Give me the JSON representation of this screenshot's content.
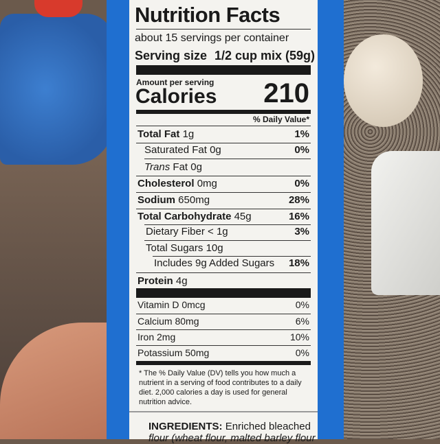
{
  "label": {
    "title": "Nutrition Facts",
    "servings": "about 15 servings per container",
    "serving_size_label": "Serving size",
    "serving_size_value": "1/2 cup mix (59g)",
    "amount_per_serving": "Amount per serving",
    "calories_label": "Calories",
    "calories_value": "210",
    "dv_header": "% Daily Value*",
    "nutrients": [
      {
        "name": "Total Fat",
        "amount": "1g",
        "dv": "1%"
      },
      {
        "name": "Saturated Fat",
        "amount": "0g",
        "dv": "0%"
      },
      {
        "name": "Trans",
        "name2": "Fat",
        "amount": "0g"
      },
      {
        "name": "Cholesterol",
        "amount": "0mg",
        "dv": "0%"
      },
      {
        "name": "Sodium",
        "amount": "650mg",
        "dv": "28%"
      },
      {
        "name": "Total Carbohydrate",
        "amount": "45g",
        "dv": "16%"
      },
      {
        "name": "Dietary Fiber",
        "amount": "< 1g",
        "dv": "3%"
      },
      {
        "name": "Total Sugars",
        "amount": "10g"
      },
      {
        "name": "Includes 9g Added Sugars",
        "dv": "18%"
      },
      {
        "name": "Protein",
        "amount": "4g"
      }
    ],
    "vitamins": [
      {
        "name": "Vitamin D",
        "amount": "0mcg",
        "dv": "0%"
      },
      {
        "name": "Calcium",
        "amount": "80mg",
        "dv": "6%"
      },
      {
        "name": "Iron",
        "amount": "2mg",
        "dv": "10%"
      },
      {
        "name": "Potassium",
        "amount": "50mg",
        "dv": "0%"
      }
    ],
    "footnote": "* The % Daily Value (DV) tells you how much a nutrient in a serving of food contributes to a daily diet. 2,000 calories a day is used for general nutrition advice.",
    "ingredients_label": "INGREDIENTS:",
    "ingredients_text": "Enriched bleached",
    "ingredients_partial": "flour (wheat flour, malted barley flour"
  }
}
